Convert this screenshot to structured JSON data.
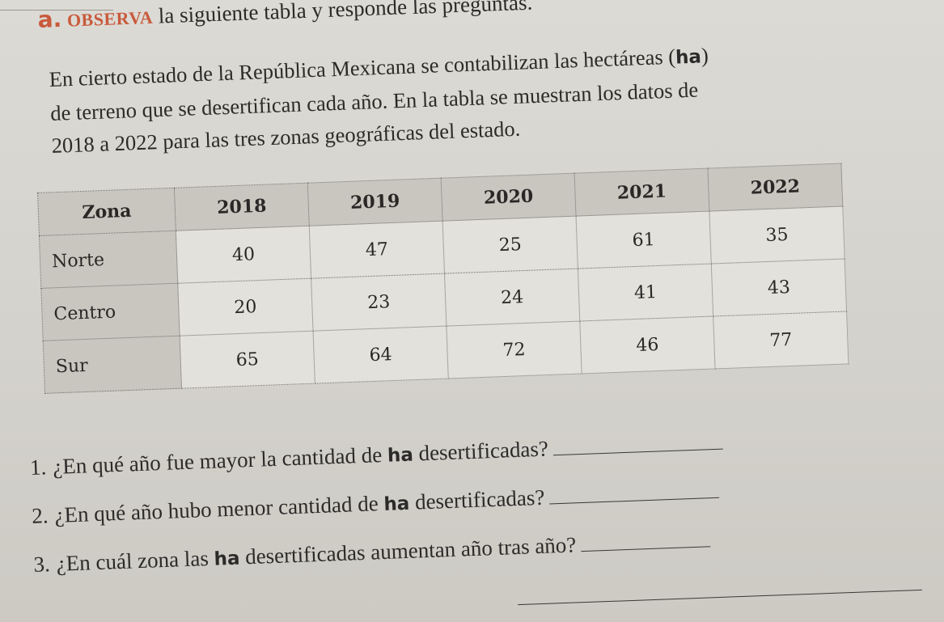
{
  "heading": {
    "letter": "a.",
    "observe": "OBSERVA",
    "rest": "la siguiente tabla y responde las preguntas."
  },
  "intro": {
    "line1_a": "En cierto estado de la República Mexicana se contabilizan las hectáreas (",
    "unit": "ha",
    "line1_b": ")",
    "line2": "de terreno que se desertifican cada año. En la tabla se muestran los datos de",
    "line3": "2018 a 2022 para las tres zonas geográficas del estado."
  },
  "table": {
    "columns": [
      "Zona",
      "2018",
      "2019",
      "2020",
      "2021",
      "2022"
    ],
    "rows": [
      {
        "zone": "Norte",
        "values": [
          "40",
          "47",
          "25",
          "61",
          "35"
        ]
      },
      {
        "zone": "Centro",
        "values": [
          "20",
          "23",
          "24",
          "41",
          "43"
        ]
      },
      {
        "zone": "Sur",
        "values": [
          "65",
          "64",
          "72",
          "46",
          "77"
        ]
      }
    ]
  },
  "questions": [
    {
      "num": "1.",
      "pre": "¿En qué año fue mayor la cantidad de",
      "unit": "ha",
      "post": "desertificadas?"
    },
    {
      "num": "2.",
      "pre": "¿En qué año hubo menor cantidad de",
      "unit": "ha",
      "post": "desertificadas?"
    },
    {
      "num": "3.",
      "pre": "¿En cuál zona las",
      "unit": "ha",
      "post": "desertificadas aumentan año tras año?"
    }
  ]
}
